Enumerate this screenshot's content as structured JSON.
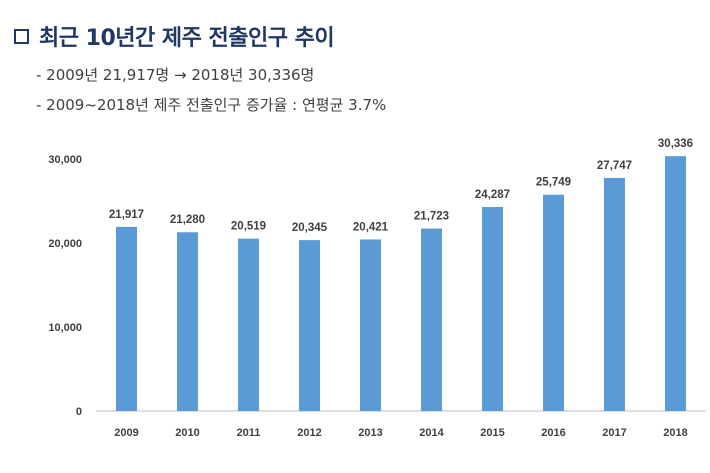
{
  "header": {
    "title": "최근 10년간 제주 전출인구 추이",
    "bullets": [
      "- 2009년 21,917명 → 2018년 30,336명",
      "- 2009~2018년 제주 전출인구 증가율 : 연평균 3.7%"
    ]
  },
  "colors": {
    "bar": "#5b9bd5",
    "title": "#1f3864",
    "axis": "#bfbfbf"
  },
  "chart_data": {
    "type": "bar",
    "categories": [
      "2009",
      "2010",
      "2011",
      "2012",
      "2013",
      "2014",
      "2015",
      "2016",
      "2017",
      "2018"
    ],
    "values": [
      21917,
      21280,
      20519,
      20345,
      20421,
      21723,
      24287,
      25749,
      27747,
      30336
    ],
    "data_labels": [
      "21,917",
      "21,280",
      "20,519",
      "20,345",
      "20,421",
      "21,723",
      "24,287",
      "25,749",
      "27,747",
      "30,336"
    ],
    "ylim": [
      0,
      30000
    ],
    "yticks": [
      0,
      10000,
      20000,
      30000
    ],
    "ytick_labels": [
      "0",
      "10,000",
      "20,000",
      "30,000"
    ],
    "grid": false,
    "legend": "none",
    "title": "",
    "xlabel": "",
    "ylabel": ""
  }
}
